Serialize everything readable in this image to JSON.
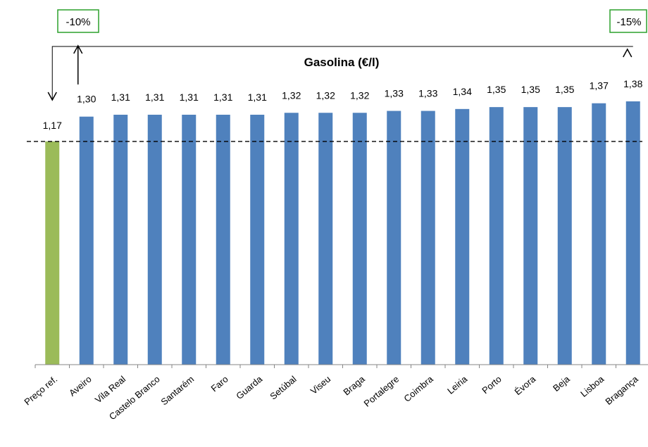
{
  "chart_data": {
    "type": "bar",
    "title": "Gasolina (€/l)",
    "categories": [
      "Preço ref.",
      "Aveiro",
      "Vila Real",
      "Castelo Branco",
      "Santarém",
      "Faro",
      "Guarda",
      "Setúbal",
      "Viseu",
      "Braga",
      "Portalegre",
      "Coimbra",
      "Leiria",
      "Porto",
      "Évora",
      "Beja",
      "Lisboa",
      "Bragança"
    ],
    "values": [
      1.17,
      1.3,
      1.31,
      1.31,
      1.31,
      1.31,
      1.31,
      1.32,
      1.32,
      1.32,
      1.33,
      1.33,
      1.34,
      1.35,
      1.35,
      1.35,
      1.37,
      1.38
    ],
    "value_labels": [
      "1,17",
      "1,30",
      "1,31",
      "1,31",
      "1,31",
      "1,31",
      "1,31",
      "1,32",
      "1,32",
      "1,32",
      "1,33",
      "1,33",
      "1,34",
      "1,35",
      "1,35",
      "1,35",
      "1,37",
      "1,38"
    ],
    "ylim": [
      0,
      1.38
    ],
    "reference_line": 1.17,
    "annotations": [
      {
        "label": "-10%",
        "category": "Aveiro"
      },
      {
        "label": "-15%",
        "category": "Bragança"
      }
    ],
    "colors": {
      "reference_bar": "#9BBB59",
      "bars": "#4F81BD",
      "annotation_border": "#2ca02c"
    },
    "grid": false,
    "legend": "none"
  }
}
